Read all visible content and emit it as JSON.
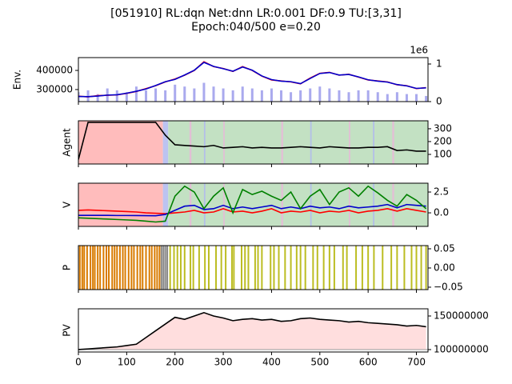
{
  "title": [
    "[051910] RL:dqn Net:dnn LR:0.001 DF:0.9 TU:[3,31]",
    "Epoch:040/500 e=0.20"
  ],
  "x": [
    0,
    20,
    40,
    60,
    80,
    100,
    120,
    140,
    160,
    180,
    200,
    220,
    240,
    260,
    280,
    300,
    320,
    340,
    360,
    380,
    400,
    420,
    440,
    460,
    480,
    500,
    520,
    540,
    560,
    580,
    600,
    620,
    640,
    660,
    680,
    700,
    720
  ],
  "xlim": [
    0,
    724
  ],
  "xticks": [
    0,
    100,
    200,
    300,
    400,
    500,
    600,
    700
  ],
  "chart_data": [
    {
      "type": "line",
      "ylabel": "Env.",
      "ytick_side": "left",
      "ylim": [
        237000,
        467000
      ],
      "yticks": [
        300000,
        400000
      ],
      "series": [
        {
          "color": "#ff0000",
          "values": [
            265000,
            262000,
            268000,
            270000,
            272000,
            280000,
            290000,
            305000,
            320000,
            340000,
            355000,
            375000,
            400000,
            445000,
            420000,
            410000,
            395000,
            420000,
            400000,
            370000,
            350000,
            345000,
            340000,
            330000,
            360000,
            385000,
            390000,
            375000,
            380000,
            365000,
            350000,
            345000,
            340000,
            325000,
            320000,
            305000,
            310000
          ]
        },
        {
          "color": "#0000cc",
          "values": [
            264000,
            263000,
            266000,
            271000,
            273000,
            281000,
            291000,
            303000,
            321000,
            341000,
            353000,
            376000,
            401000,
            442000,
            421000,
            409000,
            396000,
            418000,
            401000,
            371000,
            352000,
            344000,
            341000,
            331000,
            358000,
            384000,
            389000,
            376000,
            379000,
            366000,
            351000,
            344000,
            339000,
            326000,
            319000,
            306000,
            309000
          ]
        }
      ],
      "bars": {
        "color": "#aaaaee",
        "axis": "y2",
        "values": [
          0.25,
          0.3,
          0.2,
          0.35,
          0.3,
          0.25,
          0.4,
          0.3,
          0.35,
          0.3,
          0.45,
          0.4,
          0.35,
          0.5,
          0.4,
          0.35,
          0.3,
          0.4,
          0.35,
          0.3,
          0.35,
          0.3,
          0.25,
          0.3,
          0.35,
          0.4,
          0.35,
          0.3,
          0.25,
          0.3,
          0.3,
          0.25,
          0.2,
          0.25,
          0.2,
          0.2,
          0.15
        ]
      },
      "y2lim": [
        0,
        1.17
      ],
      "y2ticks": [
        0,
        1
      ],
      "y2_offset_label": "1e6"
    },
    {
      "type": "line",
      "ylabel": "Agent",
      "ytick_side": "right",
      "ylim": [
        25,
        362
      ],
      "yticks": [
        100,
        200,
        300
      ],
      "spans": [
        {
          "x0": 0,
          "x1": 175,
          "color": "#ffb0b0"
        },
        {
          "x0": 175,
          "x1": 186,
          "color": "#b0b8ee"
        },
        {
          "x0": 186,
          "x1": 724,
          "color": "#b8dcb8"
        },
        {
          "x0": 230,
          "x1": 234,
          "color": "#e8b8d8"
        },
        {
          "x0": 260,
          "x1": 263,
          "color": "#b0b8ee"
        },
        {
          "x0": 300,
          "x1": 303,
          "color": "#e8b8d8"
        },
        {
          "x0": 420,
          "x1": 424,
          "color": "#e8b8d8"
        },
        {
          "x0": 480,
          "x1": 483,
          "color": "#b0b8ee"
        },
        {
          "x0": 560,
          "x1": 563,
          "color": "#e8b8d8"
        },
        {
          "x0": 610,
          "x1": 613,
          "color": "#b0b8ee"
        },
        {
          "x0": 650,
          "x1": 654,
          "color": "#e8b8d8"
        }
      ],
      "series": [
        {
          "color": "#000000",
          "values": [
            60,
            350,
            350,
            350,
            350,
            350,
            350,
            350,
            350,
            250,
            175,
            170,
            165,
            160,
            170,
            150,
            155,
            160,
            150,
            155,
            150,
            150,
            155,
            160,
            155,
            150,
            160,
            155,
            150,
            150,
            155,
            155,
            160,
            130,
            135,
            125,
            125
          ]
        }
      ]
    },
    {
      "type": "line",
      "ylabel": "V",
      "ytick_side": "right",
      "ylim": [
        -1.63,
        3.56
      ],
      "yticks": [
        {
          "value": 0,
          "label": "0.0"
        },
        {
          "value": 2.5,
          "label": "2.5"
        }
      ],
      "spans": [
        {
          "x0": 0,
          "x1": 175,
          "color": "#ffb0b0"
        },
        {
          "x0": 175,
          "x1": 186,
          "color": "#b0b8ee"
        },
        {
          "x0": 186,
          "x1": 724,
          "color": "#b8dcb8"
        },
        {
          "x0": 230,
          "x1": 234,
          "color": "#e8b8d8"
        },
        {
          "x0": 260,
          "x1": 263,
          "color": "#b0b8ee"
        },
        {
          "x0": 300,
          "x1": 303,
          "color": "#e8b8d8"
        },
        {
          "x0": 420,
          "x1": 424,
          "color": "#e8b8d8"
        },
        {
          "x0": 480,
          "x1": 483,
          "color": "#b0b8ee"
        },
        {
          "x0": 560,
          "x1": 563,
          "color": "#e8b8d8"
        },
        {
          "x0": 610,
          "x1": 613,
          "color": "#b0b8ee"
        },
        {
          "x0": 650,
          "x1": 654,
          "color": "#e8b8d8"
        }
      ],
      "series": [
        {
          "color": "#ff0000",
          "values": [
            0.3,
            0.35,
            0.3,
            0.25,
            0.2,
            0.15,
            0.1,
            0.0,
            -0.05,
            -0.1,
            0.0,
            0.1,
            0.3,
            0.0,
            0.1,
            0.5,
            0.1,
            0.2,
            0.0,
            0.2,
            0.5,
            0.0,
            0.2,
            0.1,
            0.3,
            0.0,
            0.2,
            0.1,
            0.3,
            0.0,
            0.2,
            0.3,
            0.5,
            0.2,
            0.5,
            0.3,
            0.1
          ]
        },
        {
          "color": "#0000cc",
          "values": [
            -0.3,
            -0.3,
            -0.3,
            -0.3,
            -0.32,
            -0.32,
            -0.33,
            -0.34,
            -0.35,
            -0.2,
            0.3,
            0.8,
            0.9,
            0.4,
            0.5,
            0.9,
            0.5,
            0.7,
            0.5,
            0.7,
            0.9,
            0.5,
            0.7,
            0.5,
            0.8,
            0.6,
            0.7,
            0.5,
            0.8,
            0.6,
            0.7,
            0.8,
            1.0,
            0.6,
            1.0,
            0.9,
            0.8
          ]
        },
        {
          "color": "#008000",
          "values": [
            -0.6,
            -0.65,
            -0.7,
            -0.75,
            -0.8,
            -0.85,
            -0.9,
            -1.0,
            -1.1,
            -1.0,
            2.0,
            3.2,
            2.5,
            0.5,
            2.0,
            3.0,
            0.0,
            2.8,
            2.2,
            2.6,
            2.0,
            1.5,
            2.5,
            0.5,
            2.0,
            2.8,
            1.0,
            2.5,
            3.0,
            2.0,
            3.2,
            2.4,
            1.5,
            0.8,
            2.2,
            1.5,
            0.5
          ]
        }
      ]
    },
    {
      "type": "vlines",
      "ylabel": "P",
      "ytick_side": "right",
      "ylim": [
        -0.0563,
        0.0583
      ],
      "yticks": [
        {
          "value": -0.05,
          "label": "−0.05"
        },
        {
          "value": 0,
          "label": "0.00"
        },
        {
          "value": 0.05,
          "label": "0.05"
        }
      ],
      "vlines": [
        {
          "color": "#d97b00",
          "x": [
            3,
            8,
            12,
            18,
            25,
            30,
            34,
            40,
            45,
            52,
            58,
            63,
            70,
            75,
            80,
            86,
            92,
            97,
            104,
            110,
            115,
            122,
            128,
            133,
            140,
            147,
            152,
            158,
            163,
            168
          ]
        },
        {
          "color": "#888888",
          "x": [
            172,
            176,
            180,
            184
          ]
        },
        {
          "color": "#bcbd22",
          "x": [
            190,
            198,
            205,
            212,
            220,
            232,
            238,
            250,
            262,
            270,
            285,
            296,
            305,
            318,
            322,
            338,
            345,
            352,
            366,
            372,
            380,
            398,
            405,
            415,
            428,
            440,
            452,
            460,
            470,
            486,
            495,
            508,
            520,
            530,
            548,
            556,
            575,
            588,
            600,
            612,
            630,
            648,
            660,
            675,
            690,
            700,
            710,
            720
          ]
        }
      ]
    },
    {
      "type": "area",
      "ylabel": "PV",
      "ytick_side": "right",
      "ylim": [
        96400000,
        160700000
      ],
      "yticks": [
        100000000,
        150000000
      ],
      "fill": "#ffdede",
      "series": [
        {
          "color": "#000000",
          "values": [
            100000000,
            101000000,
            102000000,
            103000000,
            104000000,
            106000000,
            108000000,
            118000000,
            128000000,
            138000000,
            148000000,
            145000000,
            150000000,
            155000000,
            150000000,
            147000000,
            143000000,
            145000000,
            146000000,
            144000000,
            145000000,
            142000000,
            143000000,
            146000000,
            147000000,
            145000000,
            144000000,
            143000000,
            141000000,
            142000000,
            140000000,
            139000000,
            138000000,
            137000000,
            135000000,
            136000000,
            134000000
          ]
        }
      ]
    }
  ]
}
